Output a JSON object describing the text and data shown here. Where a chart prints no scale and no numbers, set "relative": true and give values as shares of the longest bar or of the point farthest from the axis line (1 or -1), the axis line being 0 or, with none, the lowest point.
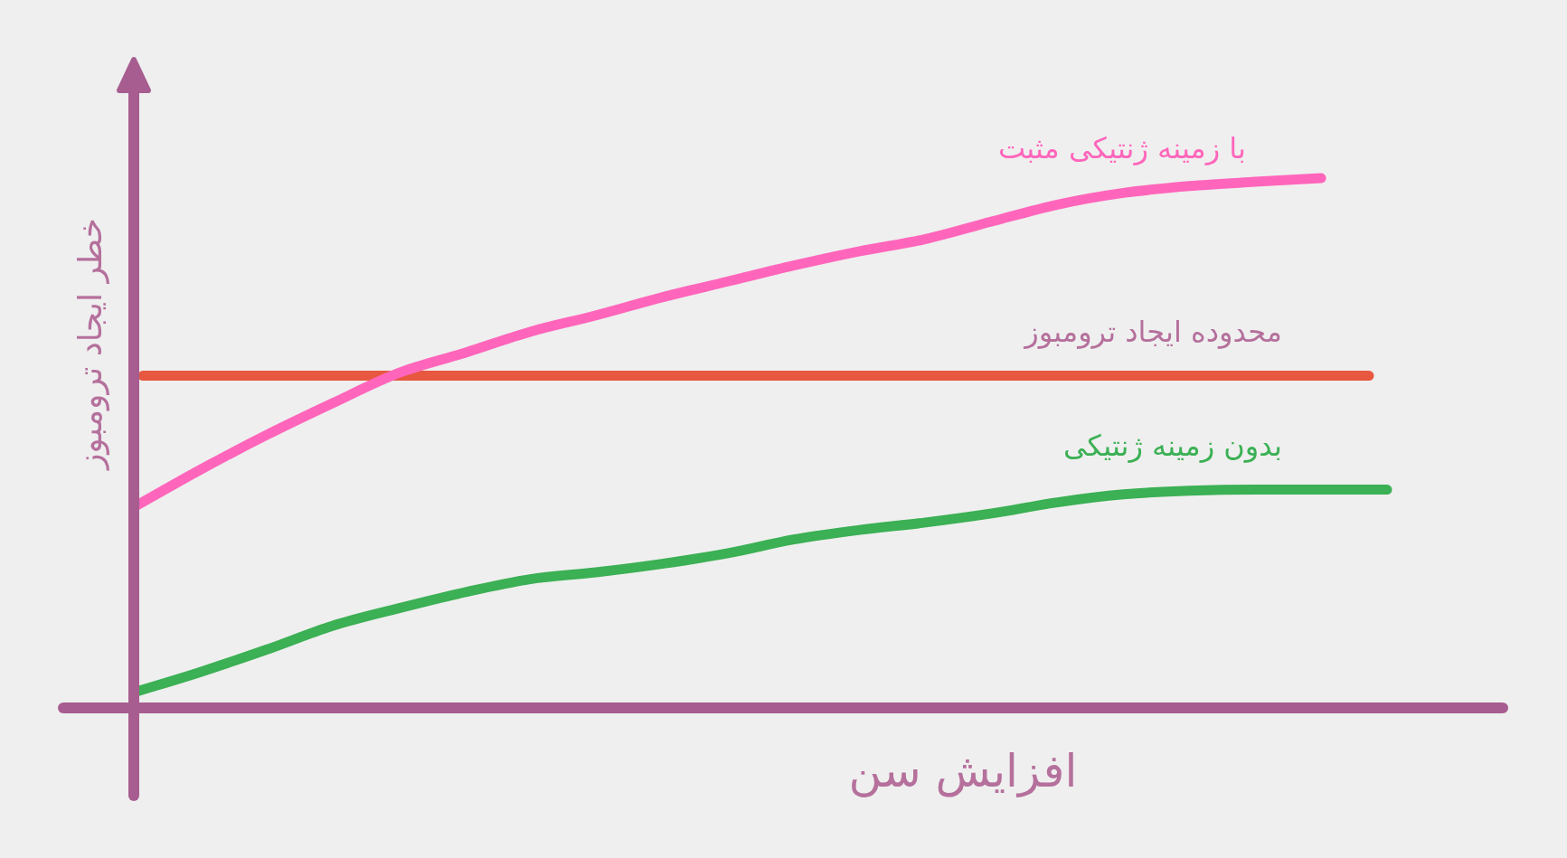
{
  "chart_data": {
    "type": "line",
    "relative": true,
    "xlabel": "افزایش سن",
    "ylabel": "خطر ایجاد ترومبوز",
    "categories": [
      null,
      null,
      null,
      null,
      null,
      null,
      null,
      null,
      null,
      null,
      null,
      null,
      null,
      null,
      null,
      null,
      null,
      null,
      null,
      null
    ],
    "series": [
      {
        "name": "با زمینه ژنتیکی مثبت",
        "color": "#ff66bb",
        "values": [
          0.38,
          0.45,
          0.515,
          0.575,
          0.632,
          0.67,
          0.71,
          0.741,
          0.775,
          0.805,
          0.835,
          0.862,
          0.885,
          0.918,
          0.95,
          0.972,
          0.985,
          0.993,
          1,
          null
        ]
      },
      {
        "name": "بدون زمینه ژنتیکی",
        "color": "#3bb054",
        "values": [
          0.03,
          0.068,
          0.11,
          0.155,
          0.188,
          0.218,
          0.243,
          0.256,
          0.272,
          0.292,
          0.318,
          0.336,
          0.35,
          0.367,
          0.388,
          0.403,
          0.41,
          0.412,
          0.412,
          0.412
        ]
      }
    ],
    "ref_lines": [
      {
        "axis": "y",
        "value": 0.627,
        "label": "محدوده ایجاد ترومبوز",
        "color": "#e8573f"
      }
    ],
    "legend": false,
    "marker": "none",
    "line_style": "solid"
  }
}
